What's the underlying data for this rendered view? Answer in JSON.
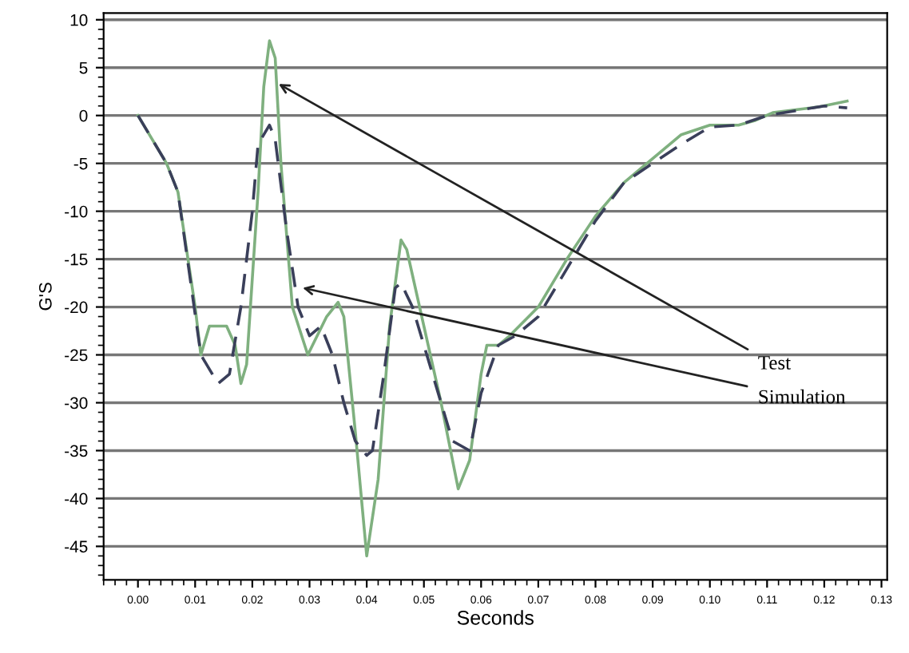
{
  "chart_data": {
    "type": "line",
    "xlabel": "Seconds",
    "ylabel": "G'S",
    "xlim": [
      -0.006,
      0.131
    ],
    "ylim": [
      -48.5,
      10.7
    ],
    "xticks": [
      {
        "value": 0.0,
        "label": "0.00"
      },
      {
        "value": 0.01,
        "label": "0.01"
      },
      {
        "value": 0.02,
        "label": "0.02"
      },
      {
        "value": 0.03,
        "label": "0.03"
      },
      {
        "value": 0.04,
        "label": "0.04"
      },
      {
        "value": 0.05,
        "label": "0.05"
      },
      {
        "value": 0.06,
        "label": "0.06"
      },
      {
        "value": 0.07,
        "label": "0.07"
      },
      {
        "value": 0.08,
        "label": "0.08"
      },
      {
        "value": 0.09,
        "label": "0.09"
      },
      {
        "value": 0.1,
        "label": "0.10"
      },
      {
        "value": 0.11,
        "label": "0.11"
      },
      {
        "value": 0.12,
        "label": "0.12"
      },
      {
        "value": 0.13,
        "label": "0.13"
      }
    ],
    "yticks": [
      10,
      5,
      0,
      -5,
      -10,
      -15,
      -20,
      -25,
      -30,
      -35,
      -40,
      -45
    ],
    "grid": "y",
    "series": [
      {
        "color": "#7fb07f",
        "line_style": "solid",
        "x": [
          0.0,
          0.005,
          0.007,
          0.01,
          0.011,
          0.0125,
          0.0155,
          0.017,
          0.018,
          0.019,
          0.021,
          0.022,
          0.023,
          0.024,
          0.025,
          0.027,
          0.0297,
          0.033,
          0.035,
          0.036,
          0.038,
          0.04,
          0.042,
          0.044,
          0.046,
          0.047,
          0.05,
          0.053,
          0.056,
          0.058,
          0.06,
          0.061,
          0.063,
          0.065,
          0.07,
          0.075,
          0.08,
          0.085,
          0.09,
          0.095,
          0.1,
          0.105,
          0.108,
          0.111,
          0.115,
          0.119,
          0.124
        ],
        "values": [
          0,
          -5,
          -8,
          -20,
          -25,
          -22,
          -22,
          -24,
          -28,
          -26,
          -8,
          3,
          7.8,
          6,
          -5,
          -20,
          -25,
          -21,
          -19.5,
          -21,
          -33,
          -46,
          -38,
          -22,
          -13,
          -14,
          -22,
          -30,
          -39,
          -36,
          -27,
          -24,
          -24,
          -23,
          -20,
          -15,
          -10.5,
          -7,
          -4.5,
          -2,
          -1,
          -1,
          -0.5,
          0.3,
          0.6,
          0.9,
          1.5
        ]
      },
      {
        "color": "#3a3f5a",
        "line_style": "dashed",
        "x": [
          0.0,
          0.005,
          0.007,
          0.011,
          0.014,
          0.016,
          0.018,
          0.02,
          0.021,
          0.023,
          0.024,
          0.026,
          0.028,
          0.03,
          0.032,
          0.034,
          0.036,
          0.038,
          0.04,
          0.041,
          0.043,
          0.045,
          0.046,
          0.048,
          0.05,
          0.053,
          0.055,
          0.058,
          0.06,
          0.063,
          0.066,
          0.07,
          0.075,
          0.08,
          0.085,
          0.09,
          0.095,
          0.1,
          0.105,
          0.11,
          0.115,
          0.12,
          0.124
        ],
        "values": [
          0,
          -5,
          -8,
          -25,
          -28,
          -27,
          -20,
          -10,
          -3,
          -1,
          -2.5,
          -12,
          -20,
          -23,
          -22,
          -25,
          -30,
          -34,
          -35.5,
          -35,
          -27,
          -18,
          -17.5,
          -20,
          -24,
          -30,
          -34,
          -35,
          -29,
          -24,
          -23,
          -21,
          -16,
          -11,
          -7,
          -5,
          -3,
          -1.2,
          -1,
          0,
          0.5,
          1,
          0.8
        ]
      }
    ],
    "annotations": [
      {
        "text": "Test",
        "x": 0.0246,
        "y": 3.3
      },
      {
        "text": "Simulation",
        "x": 0.0288,
        "y": -18
      }
    ]
  }
}
